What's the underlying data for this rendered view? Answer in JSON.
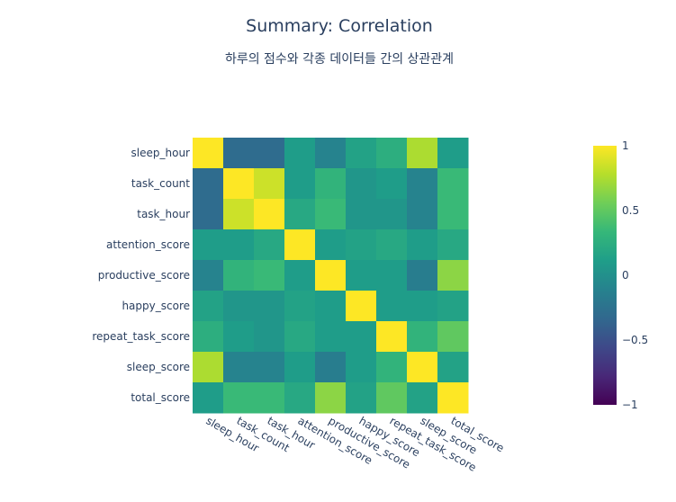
{
  "chart_data": {
    "type": "heatmap",
    "title": "Summary: Correlation",
    "subtitle": "하루의 점수와 각종 데이터들 간의 상관관계",
    "labels": [
      "sleep_hour",
      "task_count",
      "task_hour",
      "attention_score",
      "productive_score",
      "happy_score",
      "repeat_task_score",
      "sleep_score",
      "total_score"
    ],
    "z": [
      [
        1.0,
        -0.3,
        -0.3,
        0.1,
        -0.1,
        0.15,
        0.25,
        0.75,
        0.1
      ],
      [
        -0.3,
        1.0,
        0.85,
        0.1,
        0.3,
        0.05,
        0.1,
        -0.1,
        0.35
      ],
      [
        -0.3,
        0.85,
        1.0,
        0.2,
        0.35,
        0.05,
        0.05,
        -0.1,
        0.35
      ],
      [
        0.1,
        0.1,
        0.2,
        1.0,
        0.1,
        0.15,
        0.2,
        0.1,
        0.2
      ],
      [
        -0.1,
        0.3,
        0.35,
        0.1,
        1.0,
        0.1,
        0.1,
        -0.15,
        0.65
      ],
      [
        0.15,
        0.05,
        0.05,
        0.15,
        0.1,
        1.0,
        0.1,
        0.1,
        0.15
      ],
      [
        0.25,
        0.1,
        0.05,
        0.2,
        0.1,
        0.1,
        1.0,
        0.3,
        0.5
      ],
      [
        0.75,
        -0.1,
        -0.1,
        0.1,
        -0.15,
        0.1,
        0.3,
        1.0,
        0.15
      ],
      [
        0.1,
        0.35,
        0.35,
        0.2,
        0.65,
        0.15,
        0.5,
        0.15,
        1.0
      ]
    ],
    "zrange": [
      -1,
      1
    ],
    "colorscale": "Viridis",
    "colorbar_ticks": [
      "1",
      "0.5",
      "0",
      "−0.5",
      "−1"
    ],
    "colorbar_tick_values": [
      1,
      0.5,
      0,
      -0.5,
      -1
    ],
    "font_color": "#2a3f5f"
  }
}
